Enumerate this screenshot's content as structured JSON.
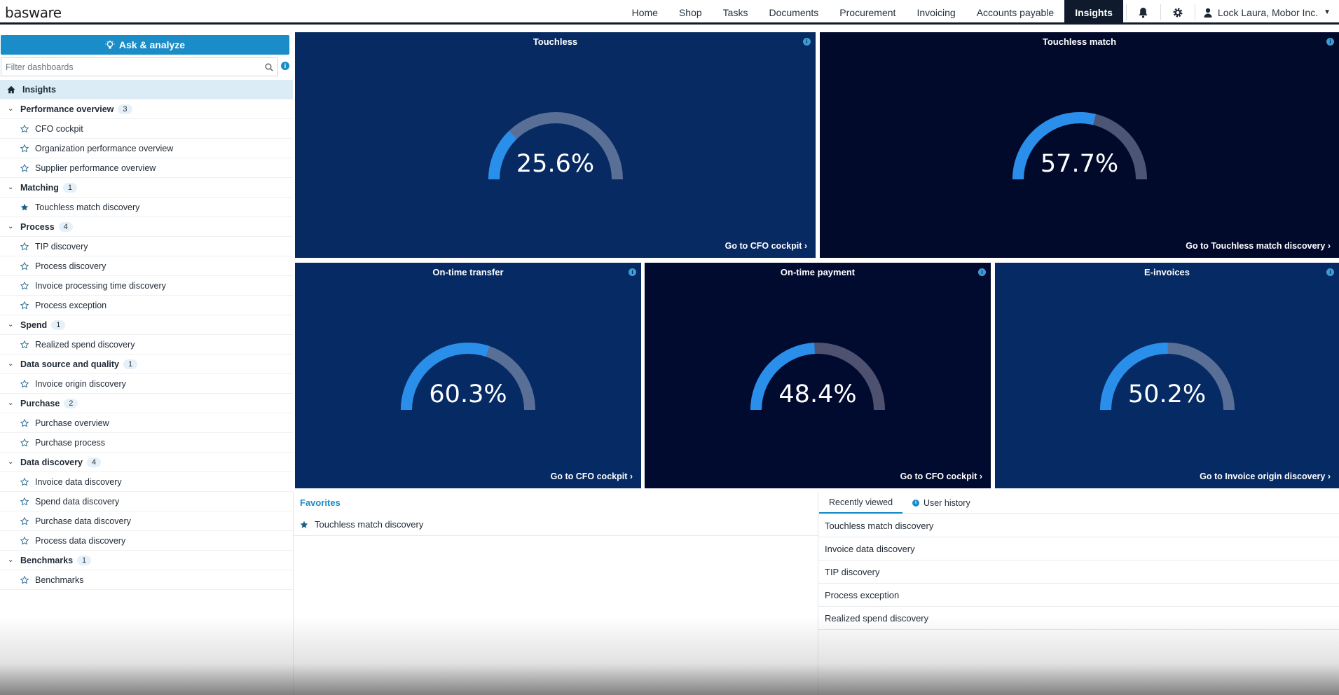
{
  "header": {
    "logo": "basware",
    "nav": [
      "Home",
      "Shop",
      "Tasks",
      "Documents",
      "Procurement",
      "Invoicing",
      "Accounts payable"
    ],
    "active_nav": "Insights",
    "bell_icon": "bell-icon",
    "gear_icon": "gear-icon",
    "user": "Lock Laura, Mobor Inc."
  },
  "sidebar": {
    "ask_label": "Ask & analyze",
    "filter_placeholder": "Filter dashboards",
    "home_label": "Insights",
    "groups": [
      {
        "label": "Performance overview",
        "count": "3",
        "items": [
          {
            "label": "CFO cockpit",
            "fav": false
          },
          {
            "label": "Organization performance overview",
            "fav": false
          },
          {
            "label": "Supplier performance overview",
            "fav": false
          }
        ]
      },
      {
        "label": "Matching",
        "count": "1",
        "items": [
          {
            "label": "Touchless match discovery",
            "fav": true
          }
        ]
      },
      {
        "label": "Process",
        "count": "4",
        "items": [
          {
            "label": "TIP discovery",
            "fav": false
          },
          {
            "label": "Process discovery",
            "fav": false
          },
          {
            "label": "Invoice processing time discovery",
            "fav": false
          },
          {
            "label": "Process exception",
            "fav": false
          }
        ]
      },
      {
        "label": "Spend",
        "count": "1",
        "items": [
          {
            "label": "Realized spend discovery",
            "fav": false
          }
        ]
      },
      {
        "label": "Data source and quality",
        "count": "1",
        "items": [
          {
            "label": "Invoice origin discovery",
            "fav": false
          }
        ]
      },
      {
        "label": "Purchase",
        "count": "2",
        "items": [
          {
            "label": "Purchase overview",
            "fav": false
          },
          {
            "label": "Purchase process",
            "fav": false
          }
        ]
      },
      {
        "label": "Data discovery",
        "count": "4",
        "items": [
          {
            "label": "Invoice data discovery",
            "fav": false
          },
          {
            "label": "Spend data discovery",
            "fav": false
          },
          {
            "label": "Purchase data discovery",
            "fav": false
          },
          {
            "label": "Process data discovery",
            "fav": false
          }
        ]
      },
      {
        "label": "Benchmarks",
        "count": "1",
        "items": [
          {
            "label": "Benchmarks",
            "fav": false
          }
        ]
      }
    ]
  },
  "tiles": {
    "touchless": {
      "title": "Touchless",
      "value": 25.6,
      "display": "25.6%",
      "link": "Go to CFO cockpit ›",
      "bg": "#072a63",
      "track": "#5a6f96"
    },
    "touchless_match": {
      "title": "Touchless match",
      "value": 57.7,
      "display": "57.7%",
      "link": "Go to Touchless match discovery ›",
      "bg": "#020a2c",
      "track": "#4c5576"
    },
    "ontime_transfer": {
      "title": "On-time transfer",
      "value": 60.3,
      "display": "60.3%",
      "link": "Go to CFO cockpit ›",
      "bg": "#062a64",
      "track": "#5a6f96"
    },
    "ontime_payment": {
      "title": "On-time payment",
      "value": 48.4,
      "display": "48.4%",
      "link": "Go to CFO cockpit ›",
      "bg": "#010a2f",
      "track": "#4f5170"
    },
    "einvoices": {
      "title": "E-invoices",
      "value": 50.2,
      "display": "50.2%",
      "link": "Go to Invoice origin discovery ›",
      "bg": "#062a64",
      "track": "#5a6f96"
    }
  },
  "colors": {
    "gauge_fill": "#2a8fea",
    "accent": "#1a8cc7",
    "info_icon": "info-icon"
  },
  "favorites": {
    "title": "Favorites",
    "items": [
      "Touchless match discovery"
    ]
  },
  "recent": {
    "tab_recent": "Recently viewed",
    "tab_history": "User history",
    "items": [
      "Touchless match discovery",
      "Invoice data discovery",
      "TIP discovery",
      "Process exception",
      "Realized spend discovery"
    ]
  }
}
